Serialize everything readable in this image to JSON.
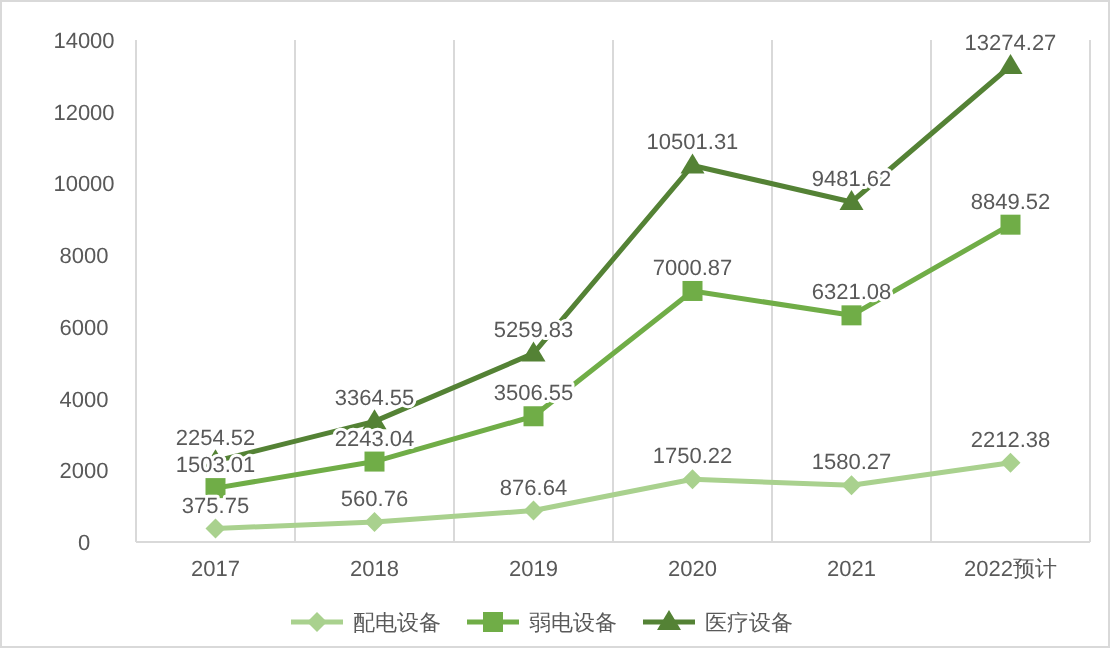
{
  "chart_data": {
    "type": "line",
    "categories": [
      "2017",
      "2018",
      "2019",
      "2020",
      "2021",
      "2022预计"
    ],
    "series": [
      {
        "name": "配电设备",
        "color": "#a9d18e",
        "marker": "diamond",
        "values": [
          375.75,
          560.76,
          876.64,
          1750.22,
          1580.27,
          2212.38
        ]
      },
      {
        "name": "弱电设备",
        "color": "#70ad47",
        "marker": "square",
        "values": [
          1503.01,
          2243.04,
          3506.55,
          7000.87,
          6321.08,
          8849.52
        ]
      },
      {
        "name": "医疗设备",
        "color": "#548235",
        "marker": "triangle",
        "values": [
          2254.52,
          3364.55,
          5259.83,
          10501.31,
          9481.62,
          13274.27
        ]
      }
    ],
    "ylim": [
      0,
      14000
    ],
    "yticks": [
      0,
      2000,
      4000,
      6000,
      8000,
      10000,
      12000,
      14000
    ],
    "grid": "x",
    "legend": "bottom",
    "data_labels": true
  }
}
